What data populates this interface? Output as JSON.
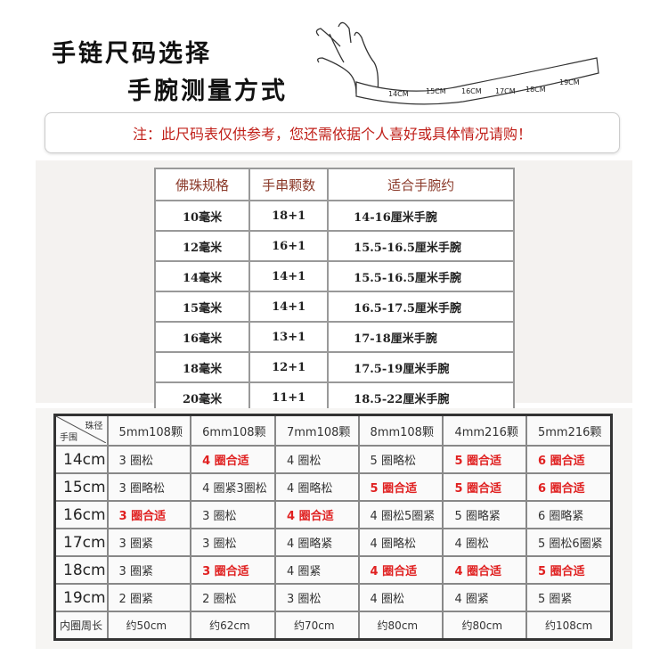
{
  "header": {
    "title": "手链尺码选择",
    "subtitle": "手腕测量方式"
  },
  "tape_labels": [
    "14CM",
    "15CM",
    "16CM",
    "17CM",
    "18CM",
    "19CM"
  ],
  "note": "注：此尺码表仅供参考，您还需依据个人喜好或具体情况请购！",
  "bead_table": {
    "headers": [
      "佛珠规格",
      "手串颗数",
      "适合手腕约"
    ],
    "rows": [
      [
        "10毫米",
        "18+1",
        "14-16厘米手腕"
      ],
      [
        "12毫米",
        "16+1",
        "15.5-16.5厘米手腕"
      ],
      [
        "14毫米",
        "14+1",
        "15.5-16.5厘米手腕"
      ],
      [
        "15毫米",
        "14+1",
        "16.5-17.5厘米手腕"
      ],
      [
        "16毫米",
        "13+1",
        "17-18厘米手腕"
      ],
      [
        "18毫米",
        "12+1",
        "17.5-19厘米手腕"
      ],
      [
        "20毫米",
        "11+1",
        "18.5-22厘米手腕"
      ]
    ]
  },
  "wrist_table": {
    "corner_top": "珠径",
    "corner_bottom": "手围",
    "headers": [
      "5mm108颗",
      "6mm108颗",
      "7mm108颗",
      "8mm108颗",
      "4mm216颗",
      "5mm216颗"
    ],
    "rows": [
      {
        "label": "14cm",
        "cells": [
          "3 圈松",
          "4 圈合适",
          "4 圈松",
          "5 圈略松",
          "5 圈合适",
          "6 圈合适"
        ],
        "fit": [
          false,
          true,
          false,
          false,
          true,
          true
        ]
      },
      {
        "label": "15cm",
        "cells": [
          "3 圈略松",
          "4 圈紧3圈松",
          "4 圈略松",
          "5 圈合适",
          "5 圈合适",
          "6 圈合适"
        ],
        "fit": [
          false,
          false,
          false,
          true,
          true,
          true
        ]
      },
      {
        "label": "16cm",
        "cells": [
          "3 圈合适",
          "3 圈松",
          "4 圈合适",
          "4 圈松5圈紧",
          "5 圈略紧",
          "6 圈略紧"
        ],
        "fit": [
          true,
          false,
          true,
          false,
          false,
          false
        ]
      },
      {
        "label": "17cm",
        "cells": [
          "3 圈紧",
          "3 圈松",
          "4 圈略紧",
          "4 圈略松",
          "4 圈松",
          "5 圈松6圈紧"
        ],
        "fit": [
          false,
          false,
          false,
          false,
          false,
          false
        ]
      },
      {
        "label": "18cm",
        "cells": [
          "3 圈紧",
          "3 圈合适",
          "4 圈紧",
          "4 圈合适",
          "4 圈合适",
          "5 圈合适"
        ],
        "fit": [
          false,
          true,
          false,
          true,
          true,
          true
        ]
      },
      {
        "label": "19cm",
        "cells": [
          "2 圈紧",
          "2 圈松",
          "3 圈松",
          "4 圈松",
          "4 圈紧",
          "5 圈紧"
        ],
        "fit": [
          false,
          false,
          false,
          false,
          false,
          false
        ]
      }
    ],
    "footer": {
      "label": "内圈周长",
      "cells": [
        "约50cm",
        "约62cm",
        "约70cm",
        "约80cm",
        "约80cm",
        "约108cm"
      ]
    }
  },
  "colors": {
    "accent_red": "#e02020",
    "note_red": "#c0201a",
    "header_brown": "#8b3a2a"
  }
}
